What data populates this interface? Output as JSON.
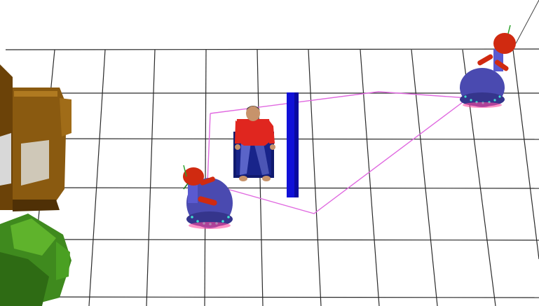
{
  "scene": {
    "background": "#ffffff",
    "floor_grid_color": "#2a2a2a",
    "path_color": "#e06ae0",
    "objects": [
      {
        "name": "wooden-cabinet",
        "color": "#8a5a10"
      },
      {
        "name": "green-armchair",
        "color": "#3f8a1e"
      },
      {
        "name": "seated-person",
        "shirt_color": "#e0261f",
        "pants_color": "#5a64c8",
        "hair_color": "#3a3a3a"
      },
      {
        "name": "navy-chair",
        "color": "#101a6e"
      },
      {
        "name": "blue-wall-panel",
        "color": "#1010d8"
      },
      {
        "name": "robot-front",
        "base_color": "#4a4ab0",
        "head_color": "#d02a10"
      },
      {
        "name": "robot-back",
        "base_color": "#4a4ab0",
        "head_color": "#d02a10"
      }
    ]
  }
}
